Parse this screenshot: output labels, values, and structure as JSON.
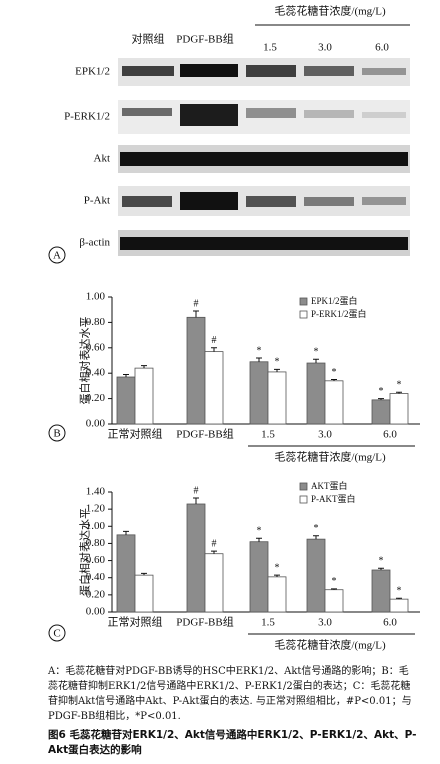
{
  "blot": {
    "header": "毛蕊花糖苷浓度/(mg/L)",
    "lanes": [
      "对照组",
      "PDGF-BB组",
      "1.5",
      "3.0",
      "6.0"
    ],
    "rows": [
      "EPK1/2",
      "P-ERK1/2",
      "Akt",
      "P-Akt",
      "β-actin"
    ],
    "panel": "A"
  },
  "chart_data": [
    {
      "type": "bar",
      "panel": "B",
      "ylabel": "蛋白相对表达水平",
      "group_label": "毛蕊花糖苷浓度/(mg/L)",
      "categories": [
        "正常对照组",
        "PDGF-BB组",
        "1.5",
        "3.0",
        "6.0"
      ],
      "ylim": [
        0,
        1.0
      ],
      "yticks": [
        {
          "value": 0,
          "label": "0.00"
        },
        {
          "value": 0.2,
          "label": "0.20"
        },
        {
          "value": 0.4,
          "label": "0.40"
        },
        {
          "value": 0.6,
          "label": "0.60"
        },
        {
          "value": 0.8,
          "label": "0.80"
        },
        {
          "value": 1.0,
          "label": "1.00"
        }
      ],
      "series": [
        {
          "name": "EPK1/2蛋白",
          "color": "#8c8c8c",
          "values": [
            0.37,
            0.84,
            0.49,
            0.48,
            0.19
          ],
          "errors": [
            0.02,
            0.05,
            0.03,
            0.03,
            0.01
          ],
          "markers": [
            null,
            "#",
            "*",
            "*",
            "*"
          ]
        },
        {
          "name": "P-ERK1/2蛋白",
          "color": "#ffffff",
          "values": [
            0.44,
            0.57,
            0.41,
            0.34,
            0.24
          ],
          "errors": [
            0.02,
            0.03,
            0.02,
            0.01,
            0.01
          ],
          "markers": [
            null,
            "#",
            "*",
            "*",
            "*"
          ]
        }
      ]
    },
    {
      "type": "bar",
      "panel": "C",
      "ylabel": "蛋白相对表达水平",
      "group_label": "毛蕊花糖苷浓度/(mg/L)",
      "categories": [
        "正常对照组",
        "PDGF-BB组",
        "1.5",
        "3.0",
        "6.0"
      ],
      "ylim": [
        0,
        1.4
      ],
      "yticks": [
        {
          "value": 0,
          "label": "0.00"
        },
        {
          "value": 0.2,
          "label": "0.20"
        },
        {
          "value": 0.4,
          "label": "0.40"
        },
        {
          "value": 0.6,
          "label": "0.60"
        },
        {
          "value": 0.8,
          "label": "0.80"
        },
        {
          "value": 1.0,
          "label": "1.00"
        },
        {
          "value": 1.2,
          "label": "1.20"
        },
        {
          "value": 1.4,
          "label": "1.40"
        }
      ],
      "series": [
        {
          "name": "AKT蛋白",
          "color": "#8c8c8c",
          "values": [
            0.9,
            1.26,
            0.82,
            0.85,
            0.49
          ],
          "errors": [
            0.04,
            0.07,
            0.04,
            0.04,
            0.02
          ],
          "markers": [
            null,
            "#",
            "*",
            "*",
            "*"
          ]
        },
        {
          "name": "P-AKT蛋白",
          "color": "#ffffff",
          "values": [
            0.43,
            0.68,
            0.41,
            0.26,
            0.15
          ],
          "errors": [
            0.02,
            0.03,
            0.02,
            0.01,
            0.01
          ],
          "markers": [
            null,
            "#",
            "*",
            "*",
            "*"
          ]
        }
      ]
    }
  ],
  "caption": {
    "note": "A：毛蕊花糖苷对PDGF-BB诱导的HSC中ERK1/2、Akt信号通路的影响；B：毛蕊花糖苷抑制ERK1/2信号通路中ERK1/2、P-ERK1/2蛋白的表达；C：毛蕊花糖苷抑制Akt信号通路中Akt、P-Akt蛋白的表达. 与正常对照组相比，#P<0.01；与PDGF-BB组相比，*P<0.01.",
    "title": "图6 毛蕊花糖苷对ERK1/2、Akt信号通路中ERK1/2、P-ERK1/2、Akt、P-Akt蛋白表达的影响"
  }
}
